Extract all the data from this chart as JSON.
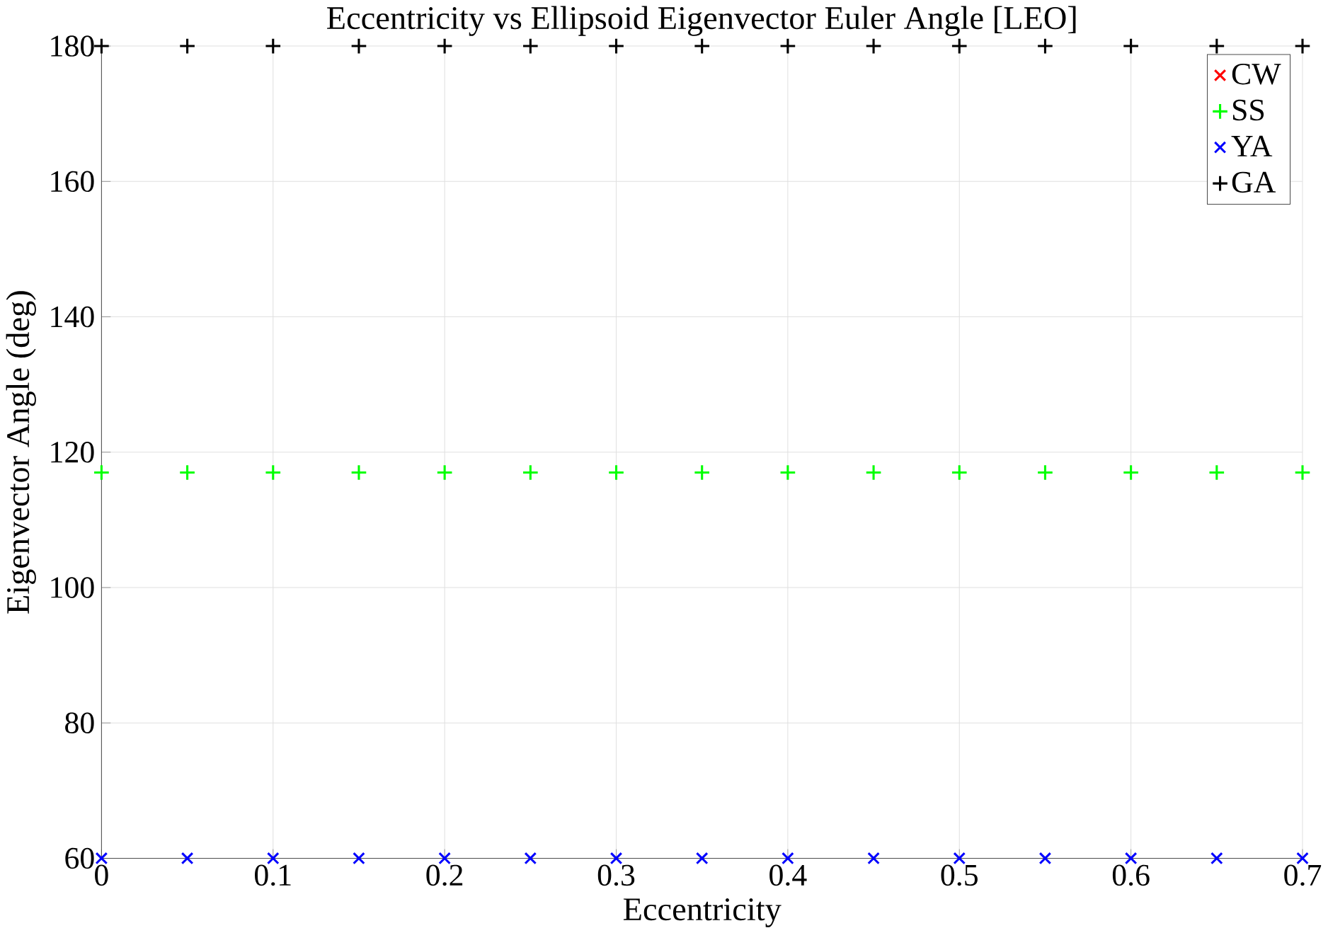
{
  "chart_data": {
    "type": "scatter",
    "title": "Eccentricity vs Ellipsoid Eigenvector Euler Angle [LEO]",
    "xlabel": "Eccentricity",
    "ylabel": "Eigenvector Angle (deg)",
    "x": [
      0,
      0.05,
      0.1,
      0.15,
      0.2,
      0.25,
      0.3,
      0.35,
      0.4,
      0.45,
      0.5,
      0.55,
      0.6,
      0.65,
      0.7
    ],
    "series": [
      {
        "name": "CW",
        "color": "#ff0000",
        "marker": "cross",
        "values": [
          null,
          null,
          null,
          null,
          null,
          null,
          null,
          null,
          null,
          null,
          null,
          null,
          null,
          null,
          null
        ]
      },
      {
        "name": "SS",
        "color": "#00ff00",
        "marker": "plus",
        "values": [
          117,
          117,
          117,
          117,
          117,
          117,
          117,
          117,
          117,
          117,
          117,
          117,
          117,
          117,
          117
        ]
      },
      {
        "name": "YA",
        "color": "#0000ff",
        "marker": "cross",
        "values": [
          60,
          60,
          60,
          60,
          60,
          60,
          60,
          60,
          60,
          60,
          60,
          60,
          60,
          60,
          60
        ]
      },
      {
        "name": "GA",
        "color": "#000000",
        "marker": "plus",
        "values": [
          180,
          180,
          180,
          180,
          180,
          180,
          180,
          180,
          180,
          180,
          180,
          180,
          180,
          180,
          180
        ]
      }
    ],
    "xlim": [
      0,
      0.7
    ],
    "ylim": [
      60,
      180
    ],
    "xticks": [
      0,
      0.1,
      0.2,
      0.3,
      0.4,
      0.5,
      0.6,
      0.7
    ],
    "yticks": [
      60,
      80,
      100,
      120,
      140,
      160,
      180
    ],
    "grid": true,
    "legend": "top right"
  }
}
